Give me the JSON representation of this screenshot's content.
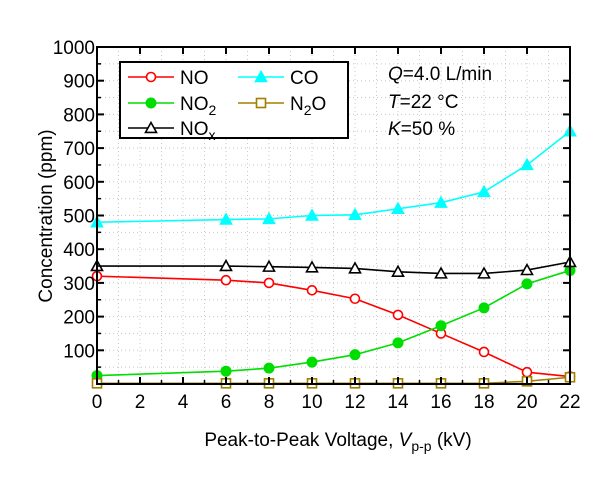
{
  "chart_data": {
    "type": "line",
    "xlabel": "Peak-to-Peak Voltage, ",
    "xlabel_var": "V",
    "xlabel_sub": "p-p",
    "xlabel_unit": " (kV)",
    "ylabel": "Concentration  (ppm)",
    "xlim": [
      0,
      22
    ],
    "ylim": [
      0,
      1000
    ],
    "xticks": [
      0,
      2,
      4,
      6,
      8,
      10,
      12,
      14,
      16,
      18,
      20,
      22
    ],
    "yticks": [
      0,
      100,
      200,
      300,
      400,
      500,
      600,
      700,
      800,
      900,
      1000
    ],
    "grid": "dotted",
    "legend_placement": "top-left",
    "series": [
      {
        "name": "NO",
        "label_main": "NO",
        "label_sub": "",
        "color": "#ff0000",
        "marker": "circle-open",
        "x": [
          0,
          6,
          8,
          10,
          12,
          14,
          16,
          18,
          20,
          22
        ],
        "values": [
          320,
          308,
          300,
          278,
          253,
          205,
          150,
          95,
          35,
          22
        ]
      },
      {
        "name": "NO2",
        "label_main": "NO",
        "label_sub": "2",
        "color": "#00dd00",
        "marker": "circle-filled",
        "x": [
          0,
          6,
          8,
          10,
          12,
          14,
          16,
          18,
          20,
          22
        ],
        "values": [
          25,
          38,
          47,
          65,
          87,
          122,
          173,
          226,
          297,
          337
        ]
      },
      {
        "name": "NOx",
        "label_main": "NO",
        "label_sub": "x",
        "color": "#000000",
        "marker": "triangle-open",
        "x": [
          0,
          6,
          8,
          10,
          12,
          14,
          16,
          18,
          20,
          22
        ],
        "values": [
          350,
          350,
          348,
          346,
          343,
          333,
          328,
          328,
          338,
          362
        ]
      },
      {
        "name": "CO",
        "label_main": "CO",
        "label_sub": "",
        "color": "#00ffff",
        "marker": "triangle-filled",
        "x": [
          0,
          6,
          8,
          10,
          12,
          14,
          16,
          18,
          20,
          22
        ],
        "values": [
          480,
          488,
          490,
          500,
          502,
          520,
          538,
          570,
          650,
          750
        ]
      },
      {
        "name": "N2O",
        "label_main": "N",
        "label_sub": "2",
        "label_after": "O",
        "color": "#a08000",
        "marker": "square-open",
        "x": [
          0,
          6,
          8,
          10,
          12,
          14,
          16,
          18,
          20,
          22
        ],
        "values": [
          2,
          2,
          2,
          2,
          2,
          2,
          2,
          2,
          8,
          20
        ]
      }
    ],
    "conditions": [
      {
        "var": "Q",
        "text": "=4.0 L/min"
      },
      {
        "var": "T",
        "text": "=22 °C"
      },
      {
        "var": "K",
        "text": "=50 %"
      }
    ]
  }
}
